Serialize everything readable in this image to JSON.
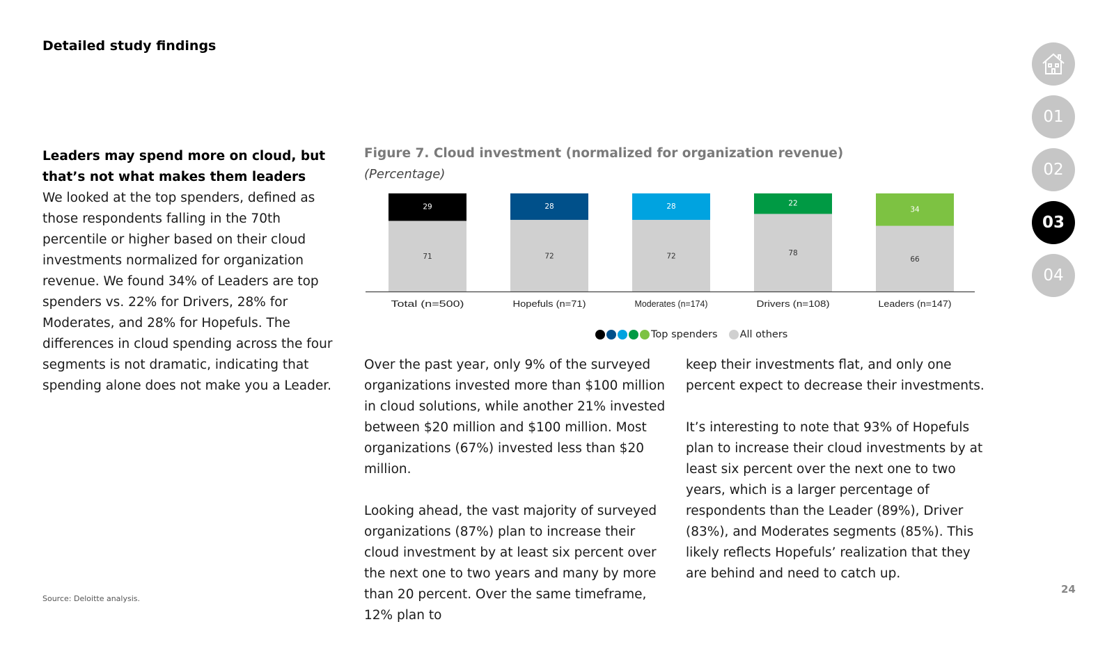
{
  "header": {
    "section_title": "Detailed study findings"
  },
  "left": {
    "lead": "Leaders may spend more on cloud, but that’s not what makes them leaders",
    "body": "We looked at the top spenders, defined as those respondents falling in the 70th percentile or higher based on their cloud investments normalized for organization revenue. We found 34% of Leaders are top spenders vs. 22% for Drivers, 28% for Moderates, and 28% for Hopefuls. The differences in cloud spending across the four segments is not dramatic, indicating that spending alone does not make you a Leader."
  },
  "figure": {
    "title": "Figure 7. Cloud investment (normalized for organization revenue)",
    "subtitle": "(Percentage)"
  },
  "chart_data": {
    "type": "bar",
    "stacked": true,
    "title": "Figure 7. Cloud investment (normalized for organization revenue)",
    "subtitle": "(Percentage)",
    "categories": [
      "Total (n=500)",
      "Hopefuls (n=71)",
      "Moderates (n=174)",
      "Drivers (n=108)",
      "Leaders (n=147)"
    ],
    "series": [
      {
        "name": "All others",
        "values": [
          71,
          72,
          72,
          78,
          66
        ],
        "color": "#d0d0d0"
      },
      {
        "name": "Top spenders",
        "values": [
          29,
          28,
          28,
          22,
          34
        ],
        "colors": [
          "#000000",
          "#00508a",
          "#00a3e0",
          "#009a44",
          "#7dc242"
        ]
      }
    ],
    "ylim": [
      0,
      100
    ],
    "grid": false,
    "legend_position": "bottom"
  },
  "legend": {
    "top_label": "Top spenders",
    "other_label": "All others",
    "top_colors": [
      "#000000",
      "#00508a",
      "#00a3e0",
      "#009a44",
      "#7dc242"
    ],
    "other_color": "#d0d0d0"
  },
  "body": {
    "col_a": [
      "Over the past year, only 9% of the surveyed organizations invested more than $100 million in cloud solutions, while another 21% invested between $20 million and $100 million. Most organizations (67%) invested less than $20 million.",
      "Looking ahead, the vast majority of surveyed organizations (87%) plan to increase their cloud investment by at least six percent over the next one to two years and many by more than 20 percent. Over the same timeframe, 12% plan to"
    ],
    "col_b": [
      "keep their investments flat, and only one percent expect to decrease their investments.",
      "It’s interesting to note that 93% of Hopefuls plan to increase their cloud investments by at least six percent over the next one to two years, which is a larger percentage of respondents than the Leader (89%), Driver (83%), and Moderates segments (85%). This likely reflects Hopefuls’ realization that they are behind and need to catch up."
    ]
  },
  "footer": {
    "source": "Source: Deloitte analysis.",
    "page_number": "24"
  },
  "nav": {
    "home_icon": "home-icon",
    "items": [
      "01",
      "02",
      "03",
      "04"
    ],
    "active": "03"
  }
}
